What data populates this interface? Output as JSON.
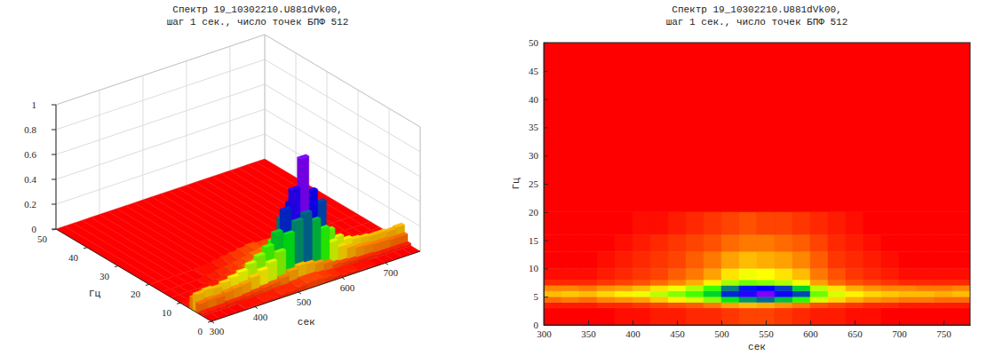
{
  "chart_data": [
    {
      "type": "surface",
      "title": "Спектр 19_10302210.U881dVk00,\nшаг 1 сек., число точек БПФ 512",
      "xlabel": "сек",
      "ylabel": "Гц",
      "x_bins": [
        300,
        320,
        340,
        360,
        380,
        400,
        420,
        440,
        460,
        480,
        500,
        520,
        540,
        560,
        580,
        600,
        620,
        640,
        660,
        680,
        700,
        720,
        740,
        760,
        780
      ],
      "y_bins": [
        0,
        3,
        4,
        5,
        6,
        7,
        8,
        10,
        13,
        16,
        20,
        50
      ],
      "z": [
        [
          0,
          0,
          0,
          0,
          0.01,
          0.01,
          0.02,
          0.02,
          0.03,
          0.03,
          0.04,
          0.05,
          0.05,
          0.04,
          0.03,
          0.02,
          0.02,
          0.01,
          0.01,
          0,
          0,
          0,
          0,
          0
        ],
        [
          0.02,
          0.02,
          0.02,
          0.03,
          0.03,
          0.04,
          0.05,
          0.06,
          0.07,
          0.09,
          0.12,
          0.14,
          0.13,
          0.11,
          0.09,
          0.06,
          0.05,
          0.04,
          0.03,
          0.03,
          0.02,
          0.02,
          0.02,
          0.02
        ],
        [
          0.08,
          0.09,
          0.08,
          0.1,
          0.11,
          0.12,
          0.15,
          0.18,
          0.22,
          0.28,
          0.4,
          0.48,
          0.52,
          0.44,
          0.35,
          0.22,
          0.16,
          0.13,
          0.11,
          0.1,
          0.09,
          0.09,
          0.08,
          0.08
        ],
        [
          0.14,
          0.15,
          0.14,
          0.16,
          0.18,
          0.2,
          0.24,
          0.28,
          0.33,
          0.42,
          0.58,
          0.72,
          0.95,
          0.66,
          0.55,
          0.3,
          0.22,
          0.18,
          0.16,
          0.15,
          0.14,
          0.14,
          0.13,
          0.14
        ],
        [
          0.1,
          0.1,
          0.09,
          0.11,
          0.12,
          0.14,
          0.17,
          0.2,
          0.25,
          0.34,
          0.5,
          0.6,
          0.62,
          0.56,
          0.42,
          0.24,
          0.17,
          0.13,
          0.11,
          0.1,
          0.1,
          0.09,
          0.09,
          0.1
        ],
        [
          0.03,
          0.03,
          0.03,
          0.04,
          0.05,
          0.06,
          0.08,
          0.1,
          0.13,
          0.18,
          0.26,
          0.3,
          0.28,
          0.25,
          0.2,
          0.12,
          0.08,
          0.06,
          0.05,
          0.04,
          0.03,
          0.03,
          0.03,
          0.03
        ],
        [
          0.01,
          0.01,
          0.01,
          0.02,
          0.03,
          0.04,
          0.05,
          0.07,
          0.09,
          0.12,
          0.17,
          0.2,
          0.19,
          0.17,
          0.14,
          0.09,
          0.06,
          0.04,
          0.03,
          0.02,
          0.01,
          0.01,
          0.01,
          0.01
        ],
        [
          0,
          0,
          0,
          0.01,
          0.02,
          0.03,
          0.04,
          0.05,
          0.07,
          0.09,
          0.12,
          0.14,
          0.13,
          0.12,
          0.1,
          0.07,
          0.04,
          0.03,
          0.02,
          0.01,
          0,
          0,
          0,
          0
        ],
        [
          0,
          0,
          0,
          0,
          0.01,
          0.02,
          0.03,
          0.04,
          0.05,
          0.06,
          0.08,
          0.09,
          0.09,
          0.08,
          0.07,
          0.05,
          0.03,
          0.02,
          0.01,
          0,
          0,
          0,
          0,
          0
        ],
        [
          0,
          0,
          0,
          0,
          0,
          0.01,
          0.01,
          0.02,
          0.03,
          0.04,
          0.05,
          0.06,
          0.05,
          0.05,
          0.04,
          0.03,
          0.02,
          0.01,
          0,
          0,
          0,
          0,
          0,
          0
        ],
        [
          0,
          0,
          0,
          0,
          0,
          0,
          0,
          0,
          0,
          0,
          0,
          0,
          0,
          0,
          0,
          0,
          0,
          0,
          0,
          0,
          0,
          0,
          0,
          0
        ]
      ],
      "xlim": [
        300,
        780
      ],
      "ylim": [
        0,
        50
      ],
      "zlim": [
        0,
        1
      ],
      "xticks": [
        300,
        400,
        500,
        600,
        700
      ],
      "yticks": [
        0,
        10,
        20,
        30,
        40,
        50
      ],
      "zticks": [
        0,
        0.2,
        0.4,
        0.6,
        0.8,
        1
      ],
      "grid": true
    },
    {
      "type": "heatmap",
      "title": "Спектр 19_10302210.U881dVk00,\nшаг 1 сек., число точек БПФ 512",
      "xlabel": "сек",
      "ylabel": "Гц",
      "x_bins": [
        300,
        320,
        340,
        360,
        380,
        400,
        420,
        440,
        460,
        480,
        500,
        520,
        540,
        560,
        580,
        600,
        620,
        640,
        660,
        680,
        700,
        720,
        740,
        760,
        780
      ],
      "y_bins": [
        0,
        3,
        4,
        5,
        6,
        7,
        8,
        10,
        13,
        16,
        20,
        50
      ],
      "z": [
        [
          0,
          0,
          0,
          0,
          0.01,
          0.01,
          0.02,
          0.02,
          0.03,
          0.03,
          0.04,
          0.05,
          0.05,
          0.04,
          0.03,
          0.02,
          0.02,
          0.01,
          0.01,
          0,
          0,
          0,
          0,
          0
        ],
        [
          0.02,
          0.02,
          0.02,
          0.03,
          0.03,
          0.04,
          0.05,
          0.06,
          0.07,
          0.09,
          0.12,
          0.14,
          0.13,
          0.11,
          0.09,
          0.06,
          0.05,
          0.04,
          0.03,
          0.03,
          0.02,
          0.02,
          0.02,
          0.02
        ],
        [
          0.08,
          0.09,
          0.08,
          0.1,
          0.11,
          0.12,
          0.15,
          0.18,
          0.22,
          0.28,
          0.4,
          0.48,
          0.52,
          0.44,
          0.35,
          0.22,
          0.16,
          0.13,
          0.11,
          0.1,
          0.09,
          0.09,
          0.08,
          0.08
        ],
        [
          0.14,
          0.15,
          0.14,
          0.16,
          0.18,
          0.2,
          0.24,
          0.28,
          0.33,
          0.42,
          0.58,
          0.72,
          0.95,
          0.66,
          0.55,
          0.3,
          0.22,
          0.18,
          0.16,
          0.15,
          0.14,
          0.14,
          0.13,
          0.14
        ],
        [
          0.1,
          0.1,
          0.09,
          0.11,
          0.12,
          0.14,
          0.17,
          0.2,
          0.25,
          0.34,
          0.5,
          0.6,
          0.62,
          0.56,
          0.42,
          0.24,
          0.17,
          0.13,
          0.11,
          0.1,
          0.1,
          0.09,
          0.09,
          0.1
        ],
        [
          0.03,
          0.03,
          0.03,
          0.04,
          0.05,
          0.06,
          0.08,
          0.1,
          0.13,
          0.18,
          0.26,
          0.3,
          0.28,
          0.25,
          0.2,
          0.12,
          0.08,
          0.06,
          0.05,
          0.04,
          0.03,
          0.03,
          0.03,
          0.03
        ],
        [
          0.01,
          0.01,
          0.01,
          0.02,
          0.03,
          0.04,
          0.05,
          0.07,
          0.09,
          0.12,
          0.17,
          0.2,
          0.19,
          0.17,
          0.14,
          0.09,
          0.06,
          0.04,
          0.03,
          0.02,
          0.01,
          0.01,
          0.01,
          0.01
        ],
        [
          0,
          0,
          0,
          0.01,
          0.02,
          0.03,
          0.04,
          0.05,
          0.07,
          0.09,
          0.12,
          0.14,
          0.13,
          0.12,
          0.1,
          0.07,
          0.04,
          0.03,
          0.02,
          0.01,
          0,
          0,
          0,
          0
        ],
        [
          0,
          0,
          0,
          0,
          0.01,
          0.02,
          0.03,
          0.04,
          0.05,
          0.06,
          0.08,
          0.09,
          0.09,
          0.08,
          0.07,
          0.05,
          0.03,
          0.02,
          0.01,
          0,
          0,
          0,
          0,
          0
        ],
        [
          0,
          0,
          0,
          0,
          0,
          0.01,
          0.01,
          0.02,
          0.03,
          0.04,
          0.05,
          0.06,
          0.05,
          0.05,
          0.04,
          0.03,
          0.02,
          0.01,
          0,
          0,
          0,
          0,
          0,
          0
        ],
        [
          0,
          0,
          0,
          0,
          0,
          0,
          0,
          0,
          0,
          0,
          0,
          0,
          0,
          0,
          0,
          0,
          0,
          0,
          0,
          0,
          0,
          0,
          0,
          0
        ]
      ],
      "xlim": [
        300,
        780
      ],
      "ylim": [
        0,
        50
      ],
      "xticks": [
        300,
        350,
        400,
        450,
        500,
        550,
        600,
        650,
        700,
        750
      ],
      "yticks": [
        0,
        5,
        10,
        15,
        20,
        25,
        30,
        35,
        40,
        45,
        50
      ]
    }
  ]
}
